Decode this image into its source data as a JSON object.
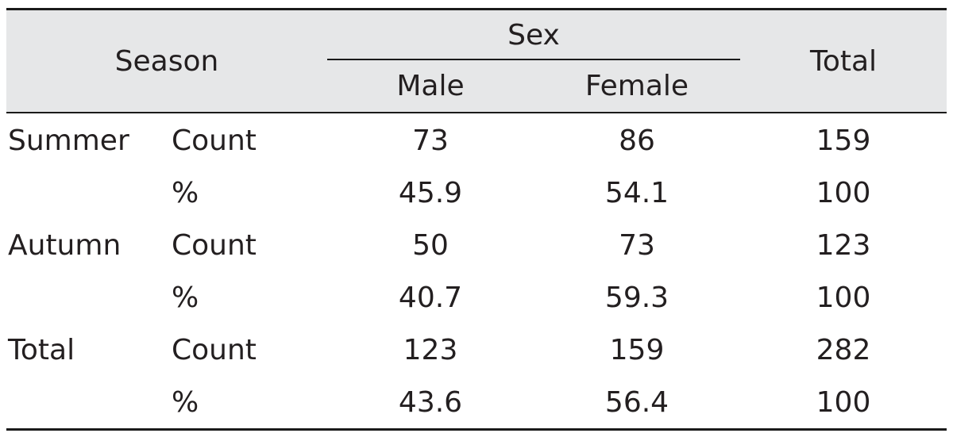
{
  "header": {
    "season_label": "Season",
    "sex_label": "Sex",
    "male_label": "Male",
    "female_label": "Female",
    "total_label": "Total"
  },
  "rows": [
    {
      "season": "Summer",
      "measure": "Count",
      "male": "73",
      "female": "86",
      "total": "159"
    },
    {
      "season": "",
      "measure": "%",
      "male": "45.9",
      "female": "54.1",
      "total": "100"
    },
    {
      "season": "Autumn",
      "measure": "Count",
      "male": "50",
      "female": "73",
      "total": "123"
    },
    {
      "season": "",
      "measure": "%",
      "male": "40.7",
      "female": "59.3",
      "total": "100"
    },
    {
      "season": "Total",
      "measure": "Count",
      "male": "123",
      "female": "159",
      "total": "282"
    },
    {
      "season": "",
      "measure": "%",
      "male": "43.6",
      "female": "56.4",
      "total": "100"
    }
  ],
  "colors": {
    "header_background": "#e6e7e8",
    "rule": "#1a1a1a",
    "text": "#231f20"
  }
}
